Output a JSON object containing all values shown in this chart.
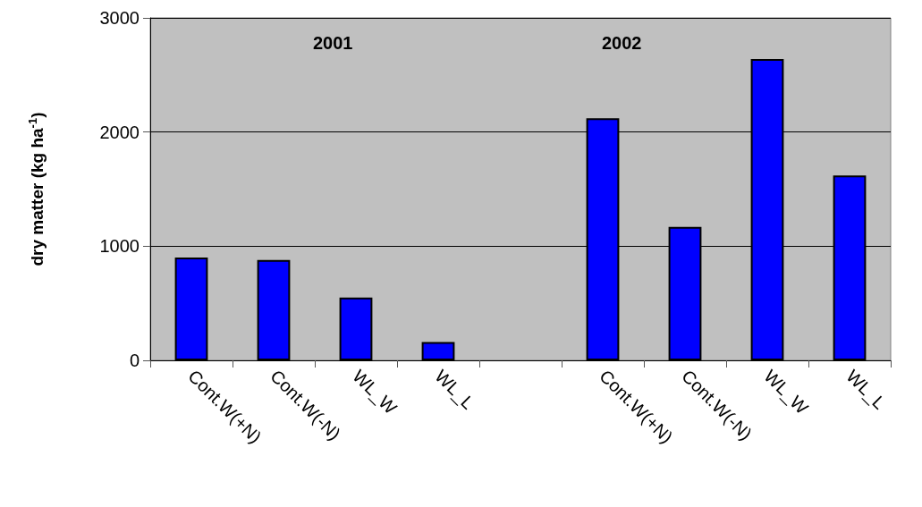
{
  "chart_data": {
    "type": "bar",
    "ylabel": "dry matter (kg ha$^{-1}$)",
    "categories": [
      "Cont.W(+N)",
      "Cont.W(-N)",
      "WL_W",
      "WL_L",
      null,
      "Cont.W(+N)",
      "Cont.W(-N)",
      "WL_W",
      "WL_L"
    ],
    "values": [
      900,
      880,
      550,
      160,
      null,
      2120,
      1170,
      2640,
      1620
    ],
    "color": "#0000ff",
    "ylim": [
      0,
      3000
    ],
    "yticks": [
      0,
      1000,
      2000,
      3000
    ],
    "grid": "y",
    "annotations": [
      "2001",
      "2002"
    ]
  }
}
